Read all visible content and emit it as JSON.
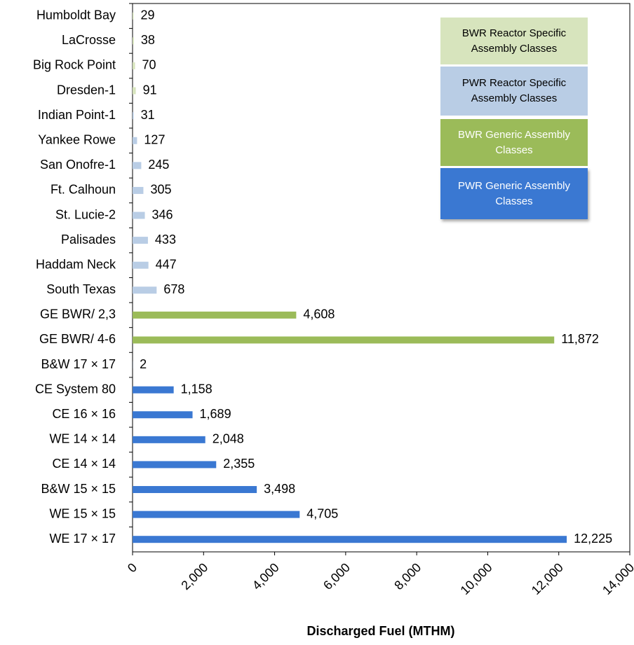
{
  "chart_data": {
    "type": "bar",
    "orientation": "horizontal",
    "xlabel": "Discharged Fuel (MTHM)",
    "categories": [
      "Humboldt Bay",
      "LaCrosse",
      "Big Rock Point",
      "Dresden-1",
      "Indian Point-1",
      "Yankee Rowe",
      "San Onofre-1",
      "Ft. Calhoun",
      "St. Lucie-2",
      "Palisades",
      "Haddam Neck",
      "South Texas",
      "GE BWR/ 2,3",
      "GE BWR/ 4-6",
      "B&W 17 × 17",
      "CE System 80",
      "CE 16 × 16",
      "WE 14 × 14",
      "CE 14 × 14",
      "B&W 15 × 15",
      "WE 15 × 15",
      "WE 17 × 17"
    ],
    "series": [
      {
        "name": "BWR Reactor Specific Assembly Classes",
        "color": "#d7e4bd",
        "values": [
          29,
          38,
          70,
          91,
          null,
          null,
          null,
          null,
          null,
          null,
          null,
          null,
          null,
          null,
          null,
          null,
          null,
          null,
          null,
          null,
          null,
          null
        ]
      },
      {
        "name": "PWR Reactor Specific Assembly Classes",
        "color": "#b9cde5",
        "values": [
          null,
          null,
          null,
          null,
          31,
          127,
          245,
          305,
          346,
          433,
          447,
          678,
          null,
          null,
          null,
          null,
          null,
          null,
          null,
          null,
          null,
          null
        ]
      },
      {
        "name": "BWR Generic Assembly Classes",
        "color": "#9bbb59",
        "values": [
          null,
          null,
          null,
          null,
          null,
          null,
          null,
          null,
          null,
          null,
          null,
          null,
          4608,
          11872,
          null,
          null,
          null,
          null,
          null,
          null,
          null,
          null
        ],
        "value_labels": [
          null,
          null,
          null,
          null,
          null,
          null,
          null,
          null,
          null,
          null,
          null,
          null,
          "4,608",
          "11,872",
          null,
          null,
          null,
          null,
          null,
          null,
          null,
          null
        ]
      },
      {
        "name": "PWR Generic Assembly Classes",
        "color": "#3a78d2",
        "values": [
          null,
          null,
          null,
          null,
          null,
          null,
          null,
          null,
          null,
          null,
          null,
          null,
          null,
          null,
          2,
          1158,
          1689,
          2048,
          2355,
          3498,
          4705,
          12225
        ],
        "value_labels": [
          null,
          null,
          null,
          null,
          null,
          null,
          null,
          null,
          null,
          null,
          null,
          null,
          null,
          null,
          null,
          "1,158",
          "1,689",
          "2,048",
          "2,355",
          "3,498",
          "4,705",
          "12,225"
        ]
      }
    ],
    "xlim": [
      0,
      14000
    ],
    "xticks": [
      0,
      {
        "value": 2000,
        "label": "2,000"
      },
      {
        "value": 4000,
        "label": "4,000"
      },
      {
        "value": 6000,
        "label": "6,000"
      },
      {
        "value": 8000,
        "label": "8,000"
      },
      {
        "value": 10000,
        "label": "10,000"
      },
      {
        "value": 12000,
        "label": "12,000"
      },
      {
        "value": 14000,
        "label": "14,000"
      }
    ],
    "grid": false
  }
}
